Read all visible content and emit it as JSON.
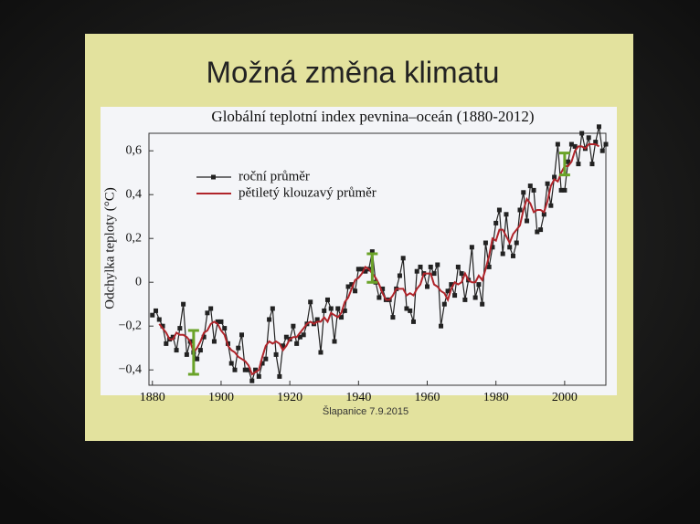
{
  "slide": {
    "title": "Možná změna klimatu",
    "footer": "Šlapanice 7.9.2015"
  },
  "chart_data": {
    "type": "line",
    "title": "Globální teplotní index pevnina–oceán (1880-2012)",
    "ylabel": "Odchylka teploty (°C)",
    "x": [
      1880,
      1881,
      1882,
      1883,
      1884,
      1885,
      1886,
      1887,
      1888,
      1889,
      1890,
      1891,
      1892,
      1893,
      1894,
      1895,
      1896,
      1897,
      1898,
      1899,
      1900,
      1901,
      1902,
      1903,
      1904,
      1905,
      1906,
      1907,
      1908,
      1909,
      1910,
      1911,
      1912,
      1913,
      1914,
      1915,
      1916,
      1917,
      1918,
      1919,
      1920,
      1921,
      1922,
      1923,
      1924,
      1925,
      1926,
      1927,
      1928,
      1929,
      1930,
      1931,
      1932,
      1933,
      1934,
      1935,
      1936,
      1937,
      1938,
      1939,
      1940,
      1941,
      1942,
      1943,
      1944,
      1945,
      1946,
      1947,
      1948,
      1949,
      1950,
      1951,
      1952,
      1953,
      1954,
      1955,
      1956,
      1957,
      1958,
      1959,
      1960,
      1961,
      1962,
      1963,
      1964,
      1965,
      1966,
      1967,
      1968,
      1969,
      1970,
      1971,
      1972,
      1973,
      1974,
      1975,
      1976,
      1977,
      1978,
      1979,
      1980,
      1981,
      1982,
      1983,
      1984,
      1985,
      1986,
      1987,
      1988,
      1989,
      1990,
      1991,
      1992,
      1993,
      1994,
      1995,
      1996,
      1997,
      1998,
      1999,
      2000,
      2001,
      2002,
      2003,
      2004,
      2005,
      2006,
      2007,
      2008,
      2009,
      2010,
      2011,
      2012
    ],
    "series": [
      {
        "name": "roční průměr",
        "color": "#222222",
        "marker": "square",
        "values": [
          -0.15,
          -0.13,
          -0.17,
          -0.2,
          -0.28,
          -0.26,
          -0.25,
          -0.31,
          -0.21,
          -0.1,
          -0.33,
          -0.27,
          -0.32,
          -0.35,
          -0.31,
          -0.25,
          -0.14,
          -0.12,
          -0.27,
          -0.18,
          -0.18,
          -0.21,
          -0.28,
          -0.37,
          -0.4,
          -0.3,
          -0.24,
          -0.4,
          -0.4,
          -0.45,
          -0.4,
          -0.43,
          -0.37,
          -0.35,
          -0.17,
          -0.12,
          -0.33,
          -0.43,
          -0.29,
          -0.25,
          -0.26,
          -0.2,
          -0.28,
          -0.25,
          -0.24,
          -0.19,
          -0.09,
          -0.19,
          -0.17,
          -0.32,
          -0.13,
          -0.08,
          -0.12,
          -0.27,
          -0.12,
          -0.16,
          -0.13,
          -0.02,
          -0.01,
          -0.04,
          0.06,
          0.06,
          0.05,
          0.06,
          0.14,
          0.0,
          -0.07,
          -0.03,
          -0.08,
          -0.08,
          -0.16,
          -0.03,
          0.03,
          0.11,
          -0.12,
          -0.13,
          -0.18,
          0.05,
          0.07,
          0.04,
          -0.02,
          0.07,
          0.04,
          0.08,
          -0.2,
          -0.1,
          -0.04,
          -0.01,
          -0.06,
          0.07,
          0.04,
          -0.08,
          0.01,
          0.16,
          -0.07,
          -0.01,
          -0.1,
          0.18,
          0.07,
          0.16,
          0.27,
          0.33,
          0.13,
          0.31,
          0.16,
          0.12,
          0.18,
          0.33,
          0.41,
          0.28,
          0.44,
          0.42,
          0.23,
          0.24,
          0.31,
          0.45,
          0.35,
          0.48,
          0.63,
          0.42,
          0.42,
          0.55,
          0.63,
          0.62,
          0.54,
          0.68,
          0.61,
          0.66,
          0.54,
          0.64,
          0.71,
          0.6,
          0.63
        ]
      },
      {
        "name": "pětiletý klouzavý průměr",
        "color": "#b0242a",
        "values": [
          null,
          null,
          -0.19,
          -0.21,
          -0.23,
          -0.26,
          -0.26,
          -0.23,
          -0.24,
          -0.24,
          -0.25,
          -0.27,
          -0.32,
          -0.3,
          -0.27,
          -0.23,
          -0.22,
          -0.19,
          -0.18,
          -0.19,
          -0.22,
          -0.24,
          -0.29,
          -0.31,
          -0.32,
          -0.34,
          -0.35,
          -0.36,
          -0.38,
          -0.42,
          -0.41,
          -0.4,
          -0.34,
          -0.29,
          -0.27,
          -0.28,
          -0.27,
          -0.28,
          -0.31,
          -0.29,
          -0.26,
          -0.25,
          -0.25,
          -0.23,
          -0.21,
          -0.19,
          -0.18,
          -0.19,
          -0.18,
          -0.18,
          -0.16,
          -0.18,
          -0.14,
          -0.15,
          -0.16,
          -0.14,
          -0.09,
          -0.07,
          -0.03,
          0.01,
          0.02,
          0.04,
          0.07,
          0.06,
          0.04,
          0.02,
          -0.01,
          -0.05,
          -0.08,
          -0.08,
          -0.06,
          -0.03,
          -0.03,
          -0.03,
          -0.06,
          -0.05,
          -0.06,
          -0.03,
          -0.01,
          0.04,
          0.04,
          0.04,
          -0.01,
          -0.02,
          -0.04,
          -0.05,
          -0.08,
          -0.03,
          0.0,
          -0.01,
          0.0,
          0.04,
          0.01,
          0.0,
          0.0,
          0.03,
          0.01,
          0.06,
          0.12,
          0.2,
          0.19,
          0.24,
          0.24,
          0.21,
          0.18,
          0.22,
          0.24,
          0.26,
          0.33,
          0.38,
          0.36,
          0.32,
          0.33,
          0.33,
          0.32,
          0.37,
          0.44,
          0.47,
          0.46,
          0.5,
          0.53,
          0.53,
          0.55,
          0.6,
          0.62,
          0.62,
          0.61,
          0.63,
          0.63,
          0.63,
          0.62,
          null,
          null
        ]
      }
    ],
    "error_bars": {
      "color": "#6aa329",
      "x": [
        1892,
        1944,
        2000
      ],
      "low": [
        -0.42,
        0.0,
        0.49
      ],
      "high": [
        -0.22,
        0.13,
        0.59
      ]
    },
    "legend": "upper left",
    "xlim": [
      1879,
      2012
    ],
    "xticks": [
      1880,
      1900,
      1920,
      1940,
      1960,
      1980,
      2000
    ],
    "ylim": [
      -0.47,
      0.68
    ],
    "yticks": [
      {
        "value": -0.4,
        "label": "−0,4"
      },
      {
        "value": -0.2,
        "label": "−0,2"
      },
      0,
      {
        "value": 0.2,
        "label": "0,2"
      },
      {
        "value": 0.4,
        "label": "0,4"
      },
      {
        "value": 0.6,
        "label": "0,6"
      }
    ],
    "grid": false
  }
}
